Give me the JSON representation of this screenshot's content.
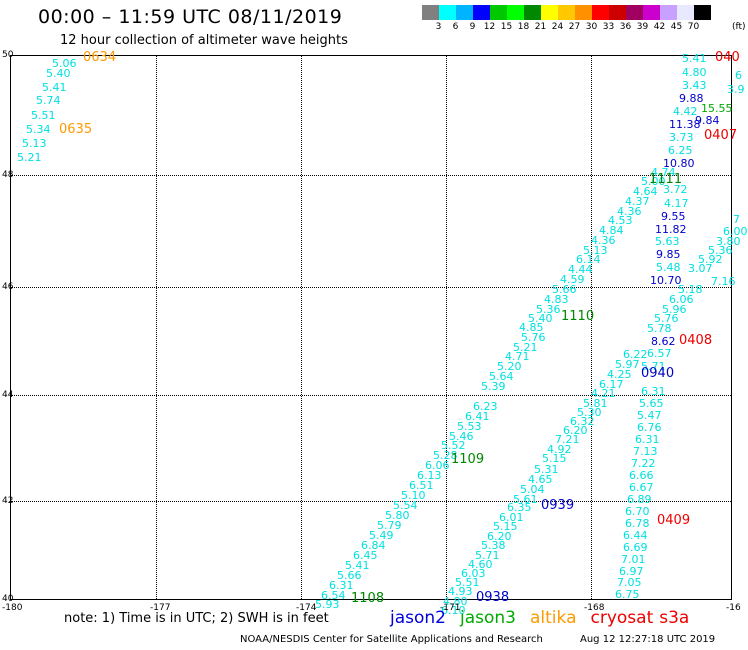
{
  "title": "00:00 – 11:59 UTC 08/11/2019",
  "subtitle": "12 hour collection of altimeter wave heights",
  "scale": {
    "labels": [
      "3",
      "6",
      "9",
      "12",
      "15",
      "18",
      "21",
      "24",
      "27",
      "30",
      "33",
      "36",
      "39",
      "42",
      "45",
      "70"
    ],
    "colors": [
      "#808080",
      "#00ffff",
      "#00b4ff",
      "#0000ff",
      "#00c800",
      "#00ff00",
      "#008800",
      "#ffff00",
      "#ffc800",
      "#ff9000",
      "#ff0000",
      "#cc0000",
      "#a00060",
      "#cc00cc",
      "#c8a0ff",
      "#e8e8ff",
      "#000000"
    ],
    "unit": "(ft)"
  },
  "axes": {
    "y_ticks": [
      "50",
      "48",
      "46",
      "44",
      "42",
      "40"
    ],
    "x_ticks": [
      "-180",
      "-177",
      "-174",
      "-171",
      "-168",
      "-16"
    ]
  },
  "swath_values": [
    {
      "t": "5.06",
      "x": 41,
      "y": 2,
      "c": "cyan"
    },
    {
      "t": "5.40",
      "x": 35,
      "y": 12,
      "c": "cyan"
    },
    {
      "t": "5.41",
      "x": 31,
      "y": 26,
      "c": "cyan"
    },
    {
      "t": "5.74",
      "x": 25,
      "y": 39,
      "c": "cyan"
    },
    {
      "t": "5.51",
      "x": 20,
      "y": 54,
      "c": "cyan"
    },
    {
      "t": "5.34",
      "x": 15,
      "y": 68,
      "c": "cyan"
    },
    {
      "t": "5.13",
      "x": 11,
      "y": 82,
      "c": "cyan"
    },
    {
      "t": "5.21",
      "x": 6,
      "y": 96,
      "c": "cyan"
    },
    {
      "t": "5.41",
      "x": 671,
      "y": -3,
      "c": "cyan"
    },
    {
      "t": "4.80",
      "x": 671,
      "y": 11,
      "c": "cyan"
    },
    {
      "t": "3.43",
      "x": 671,
      "y": 24,
      "c": "cyan"
    },
    {
      "t": "9.88",
      "x": 668,
      "y": 37,
      "c": "blue"
    },
    {
      "t": "15.55",
      "x": 690,
      "y": 47,
      "c": "green"
    },
    {
      "t": "4.42",
      "x": 662,
      "y": 50,
      "c": "cyan"
    },
    {
      "t": "11.38",
      "x": 658,
      "y": 63,
      "c": "blue"
    },
    {
      "t": "9.84",
      "x": 684,
      "y": 59,
      "c": "blue"
    },
    {
      "t": "3.73",
      "x": 658,
      "y": 76,
      "c": "cyan"
    },
    {
      "t": "6.25",
      "x": 657,
      "y": 89,
      "c": "cyan"
    },
    {
      "t": "10.80",
      "x": 652,
      "y": 102,
      "c": "blue"
    },
    {
      "t": "4.74",
      "x": 640,
      "y": 111,
      "c": "cyan"
    },
    {
      "t": "5.00",
      "x": 630,
      "y": 120,
      "c": "cyan"
    },
    {
      "t": "4.64",
      "x": 622,
      "y": 130,
      "c": "cyan"
    },
    {
      "t": "3.72",
      "x": 652,
      "y": 128,
      "c": "cyan"
    },
    {
      "t": "4.37",
      "x": 614,
      "y": 140,
      "c": "cyan"
    },
    {
      "t": "4.17",
      "x": 653,
      "y": 142,
      "c": "cyan"
    },
    {
      "t": "4.36",
      "x": 606,
      "y": 150,
      "c": "cyan"
    },
    {
      "t": "4.53",
      "x": 597,
      "y": 159,
      "c": "cyan"
    },
    {
      "t": "9.55",
      "x": 650,
      "y": 155,
      "c": "blue"
    },
    {
      "t": "4.84",
      "x": 588,
      "y": 169,
      "c": "cyan"
    },
    {
      "t": "11.82",
      "x": 644,
      "y": 168,
      "c": "blue"
    },
    {
      "t": "4.36",
      "x": 580,
      "y": 179,
      "c": "cyan"
    },
    {
      "t": "5.63",
      "x": 644,
      "y": 180,
      "c": "cyan"
    },
    {
      "t": "5.13",
      "x": 572,
      "y": 189,
      "c": "cyan"
    },
    {
      "t": "9.85",
      "x": 645,
      "y": 193,
      "c": "blue"
    },
    {
      "t": "6.14",
      "x": 565,
      "y": 198,
      "c": "cyan"
    },
    {
      "t": "5.48",
      "x": 645,
      "y": 206,
      "c": "cyan"
    },
    {
      "t": "4.44",
      "x": 557,
      "y": 208,
      "c": "cyan"
    },
    {
      "t": "4.59",
      "x": 549,
      "y": 218,
      "c": "cyan"
    },
    {
      "t": "10.70",
      "x": 639,
      "y": 219,
      "c": "blue"
    },
    {
      "t": "5.66",
      "x": 541,
      "y": 228,
      "c": "cyan"
    },
    {
      "t": "4.83",
      "x": 533,
      "y": 238,
      "c": "cyan"
    },
    {
      "t": "5.36",
      "x": 525,
      "y": 248,
      "c": "cyan"
    },
    {
      "t": "5.40",
      "x": 517,
      "y": 257,
      "c": "cyan"
    },
    {
      "t": "5.76",
      "x": 510,
      "y": 276,
      "c": "cyan"
    },
    {
      "t": "4.85",
      "x": 508,
      "y": 266,
      "c": "cyan"
    },
    {
      "t": "5.21",
      "x": 502,
      "y": 286,
      "c": "cyan"
    },
    {
      "t": "4.71",
      "x": 494,
      "y": 295,
      "c": "cyan"
    },
    {
      "t": "5.20",
      "x": 486,
      "y": 305,
      "c": "cyan"
    },
    {
      "t": "5.64",
      "x": 478,
      "y": 315,
      "c": "cyan"
    },
    {
      "t": "5.39",
      "x": 470,
      "y": 325,
      "c": "cyan"
    },
    {
      "t": "6.23",
      "x": 462,
      "y": 345,
      "c": "cyan"
    },
    {
      "t": "6.41",
      "x": 454,
      "y": 355,
      "c": "cyan"
    },
    {
      "t": "5.53",
      "x": 446,
      "y": 365,
      "c": "cyan"
    },
    {
      "t": "5.46",
      "x": 438,
      "y": 375,
      "c": "cyan"
    },
    {
      "t": "5.52",
      "x": 430,
      "y": 384,
      "c": "cyan"
    },
    {
      "t": "5.28",
      "x": 422,
      "y": 394,
      "c": "cyan"
    },
    {
      "t": "6.06",
      "x": 414,
      "y": 404,
      "c": "cyan"
    },
    {
      "t": "6.13",
      "x": 406,
      "y": 414,
      "c": "cyan"
    },
    {
      "t": "6.51",
      "x": 398,
      "y": 424,
      "c": "cyan"
    },
    {
      "t": "5.10",
      "x": 390,
      "y": 434,
      "c": "cyan"
    },
    {
      "t": "5.54",
      "x": 382,
      "y": 444,
      "c": "cyan"
    },
    {
      "t": "5.80",
      "x": 374,
      "y": 454,
      "c": "cyan"
    },
    {
      "t": "5.79",
      "x": 366,
      "y": 464,
      "c": "cyan"
    },
    {
      "t": "5.49",
      "x": 358,
      "y": 474,
      "c": "cyan"
    },
    {
      "t": "6.84",
      "x": 350,
      "y": 484,
      "c": "cyan"
    },
    {
      "t": "6.45",
      "x": 342,
      "y": 494,
      "c": "cyan"
    },
    {
      "t": "5.41",
      "x": 334,
      "y": 504,
      "c": "cyan"
    },
    {
      "t": "5.66",
      "x": 326,
      "y": 514,
      "c": "cyan"
    },
    {
      "t": "6.31",
      "x": 318,
      "y": 524,
      "c": "cyan"
    },
    {
      "t": "6.54",
      "x": 310,
      "y": 534,
      "c": "cyan"
    },
    {
      "t": "5.93",
      "x": 304,
      "y": 543,
      "c": "cyan"
    },
    {
      "t": "7.16",
      "x": 700,
      "y": 220,
      "c": "cyan"
    },
    {
      "t": "3.07",
      "x": 677,
      "y": 207,
      "c": "cyan"
    },
    {
      "t": "5.92",
      "x": 687,
      "y": 198,
      "c": "cyan"
    },
    {
      "t": "5.36",
      "x": 697,
      "y": 189,
      "c": "cyan"
    },
    {
      "t": "3.80",
      "x": 705,
      "y": 180,
      "c": "cyan"
    },
    {
      "t": "6.00",
      "x": 712,
      "y": 170,
      "c": "cyan"
    },
    {
      "t": "5.18",
      "x": 667,
      "y": 228,
      "c": "cyan"
    },
    {
      "t": "6.06",
      "x": 658,
      "y": 238,
      "c": "cyan"
    },
    {
      "t": "5.96",
      "x": 651,
      "y": 248,
      "c": "cyan"
    },
    {
      "t": "5.76",
      "x": 643,
      "y": 257,
      "c": "cyan"
    },
    {
      "t": "5.78",
      "x": 636,
      "y": 267,
      "c": "cyan"
    },
    {
      "t": "8.62",
      "x": 640,
      "y": 280,
      "c": "blue"
    },
    {
      "t": "6.57",
      "x": 636,
      "y": 292,
      "c": "cyan"
    },
    {
      "t": "6.22",
      "x": 612,
      "y": 293,
      "c": "cyan"
    },
    {
      "t": "5.97",
      "x": 604,
      "y": 303,
      "c": "cyan"
    },
    {
      "t": "5.71",
      "x": 630,
      "y": 305,
      "c": "cyan"
    },
    {
      "t": "4.25",
      "x": 596,
      "y": 313,
      "c": "cyan"
    },
    {
      "t": "6.17",
      "x": 588,
      "y": 323,
      "c": "cyan"
    },
    {
      "t": "6.31",
      "x": 630,
      "y": 330,
      "c": "cyan"
    },
    {
      "t": "4.21",
      "x": 580,
      "y": 332,
      "c": "cyan"
    },
    {
      "t": "5.65",
      "x": 628,
      "y": 342,
      "c": "cyan"
    },
    {
      "t": "5.81",
      "x": 572,
      "y": 342,
      "c": "cyan"
    },
    {
      "t": "5.47",
      "x": 626,
      "y": 354,
      "c": "cyan"
    },
    {
      "t": "5.30",
      "x": 566,
      "y": 351,
      "c": "cyan"
    },
    {
      "t": "6.76",
      "x": 626,
      "y": 366,
      "c": "cyan"
    },
    {
      "t": "6.32",
      "x": 559,
      "y": 360,
      "c": "cyan"
    },
    {
      "t": "6.20",
      "x": 552,
      "y": 369,
      "c": "cyan"
    },
    {
      "t": "6.31",
      "x": 624,
      "y": 378,
      "c": "cyan"
    },
    {
      "t": "7.21",
      "x": 544,
      "y": 378,
      "c": "cyan"
    },
    {
      "t": "7.13",
      "x": 622,
      "y": 390,
      "c": "cyan"
    },
    {
      "t": "4.92",
      "x": 536,
      "y": 388,
      "c": "cyan"
    },
    {
      "t": "5.15",
      "x": 531,
      "y": 397,
      "c": "cyan"
    },
    {
      "t": "7.22",
      "x": 620,
      "y": 402,
      "c": "cyan"
    },
    {
      "t": "5.31",
      "x": 523,
      "y": 408,
      "c": "cyan"
    },
    {
      "t": "6.66",
      "x": 618,
      "y": 414,
      "c": "cyan"
    },
    {
      "t": "4.65",
      "x": 517,
      "y": 418,
      "c": "cyan"
    },
    {
      "t": "6.67",
      "x": 618,
      "y": 426,
      "c": "cyan"
    },
    {
      "t": "5.04",
      "x": 509,
      "y": 428,
      "c": "cyan"
    },
    {
      "t": "6.89",
      "x": 616,
      "y": 438,
      "c": "cyan"
    },
    {
      "t": "5.61",
      "x": 502,
      "y": 438,
      "c": "cyan"
    },
    {
      "t": "6.35",
      "x": 496,
      "y": 446,
      "c": "cyan"
    },
    {
      "t": "6.70",
      "x": 614,
      "y": 450,
      "c": "cyan"
    },
    {
      "t": "6.01",
      "x": 488,
      "y": 456,
      "c": "cyan"
    },
    {
      "t": "5.15",
      "x": 482,
      "y": 465,
      "c": "cyan"
    },
    {
      "t": "6.78",
      "x": 614,
      "y": 462,
      "c": "cyan"
    },
    {
      "t": "6.20",
      "x": 476,
      "y": 475,
      "c": "cyan"
    },
    {
      "t": "6.44",
      "x": 612,
      "y": 474,
      "c": "cyan"
    },
    {
      "t": "5.38",
      "x": 470,
      "y": 484,
      "c": "cyan"
    },
    {
      "t": "6.69",
      "x": 612,
      "y": 486,
      "c": "cyan"
    },
    {
      "t": "5.71",
      "x": 464,
      "y": 494,
      "c": "cyan"
    },
    {
      "t": "7.01",
      "x": 610,
      "y": 498,
      "c": "cyan"
    },
    {
      "t": "4.60",
      "x": 457,
      "y": 503,
      "c": "cyan"
    },
    {
      "t": "6.97",
      "x": 608,
      "y": 510,
      "c": "cyan"
    },
    {
      "t": "6.03",
      "x": 450,
      "y": 512,
      "c": "cyan"
    },
    {
      "t": "7.05",
      "x": 606,
      "y": 521,
      "c": "cyan"
    },
    {
      "t": "5.51",
      "x": 444,
      "y": 521,
      "c": "cyan"
    },
    {
      "t": "6.75",
      "x": 604,
      "y": 533,
      "c": "cyan"
    },
    {
      "t": "4.93",
      "x": 437,
      "y": 530,
      "c": "cyan"
    },
    {
      "t": "4.80",
      "x": 432,
      "y": 540,
      "c": "cyan"
    },
    {
      "t": "6.10",
      "x": 430,
      "y": 549,
      "c": "cyan"
    }
  ],
  "time_markers": [
    {
      "t": "0634",
      "x": 72,
      "y": -5,
      "c": "orange"
    },
    {
      "t": "0635",
      "x": 48,
      "y": 67,
      "c": "orange"
    },
    {
      "t": "040",
      "x": 704,
      "y": -5,
      "c": "red"
    },
    {
      "t": "0407",
      "x": 693,
      "y": 73,
      "c": "red"
    },
    {
      "t": "1111",
      "x": 638,
      "y": 117,
      "c": "green"
    },
    {
      "t": "1110",
      "x": 550,
      "y": 254,
      "c": "green"
    },
    {
      "t": "0408",
      "x": 668,
      "y": 278,
      "c": "red"
    },
    {
      "t": "0940",
      "x": 630,
      "y": 311,
      "c": "blue"
    },
    {
      "t": "1109",
      "x": 440,
      "y": 397,
      "c": "green"
    },
    {
      "t": "0939",
      "x": 530,
      "y": 443,
      "c": "blue"
    },
    {
      "t": "0409",
      "x": 646,
      "y": 458,
      "c": "red"
    },
    {
      "t": "1108",
      "x": 340,
      "y": 536,
      "c": "green"
    },
    {
      "t": "0938",
      "x": 465,
      "y": 535,
      "c": "blue"
    }
  ],
  "edge_values": [
    {
      "t": "6",
      "x": 724,
      "y": 14
    },
    {
      "t": "3.9",
      "x": 716,
      "y": 28
    },
    {
      "t": "7",
      "x": 722,
      "y": 158
    }
  ],
  "note": "note:  1) Time is in UTC;  2) SWH is in feet",
  "legend": [
    {
      "name": "jason2",
      "color": "#0000dd"
    },
    {
      "name": "jason3",
      "color": "#00aa00"
    },
    {
      "name": "altika",
      "color": "#ff9900"
    },
    {
      "name": "cryosat",
      "color": "#ee0000"
    },
    {
      "name": "s3a",
      "color": "#ee0000"
    }
  ],
  "credit": "NOAA/NESDIS Center for Satellite Applications and Research",
  "stamp": "Aug 12 12:27:18 UTC 2019"
}
